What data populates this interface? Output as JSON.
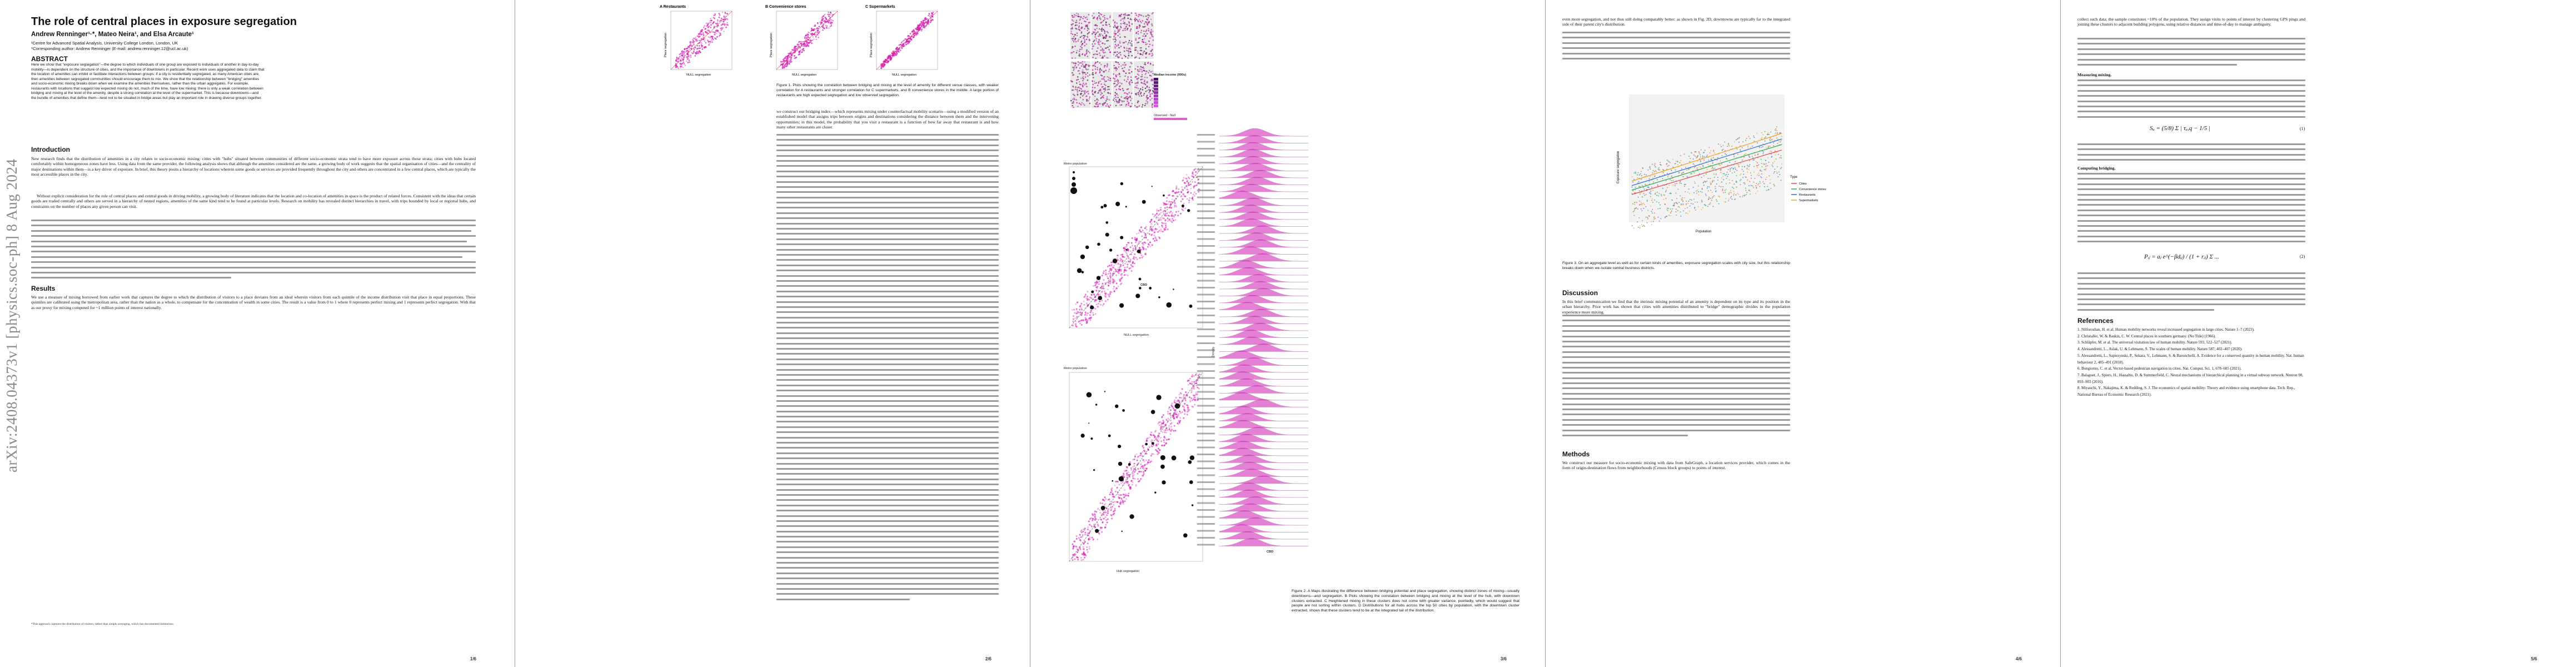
{
  "arxiv_stamp": "arXiv:2408.04373v1  [physics.soc-ph]  8 Aug 2024",
  "paper": {
    "title": "The role of central places in exposure segregation",
    "authors": "Andrew Renninger¹·*, Mateo Neira¹, and Elsa Arcaute¹",
    "affiliation_1": "¹Centre for Advanced Spatial Analysis, University College London, London, UK",
    "affiliation_2": "*Corresponding author: Andrew Renninger (E-mail: andrew.renninger.12@ucl.ac.uk)",
    "abstract_heading": "ABSTRACT",
    "abstract": "Here we show that \"exposure segregation\"—the degree to which individuals of one group are exposed to individuals of another in day-to-day mobility—is dependent on the structure of cities, and the importance of downtowns in particular. Recent work uses aggregated data to claim that the location of amenities can inhibit or facilitate interactions between groups: if a city is residentially segregated, as many American cities are, then amenities between segregated communities should encourage them to mix. We show that the relationship between \"bridging\" amenities and socio-economic mixing breaks down when we examine the amenities themselves, rather than the urban aggregates. For example, restaurants with locations that suggest low expected mixing do not, much of the time, have low mixing: there is only a weak correlation between bridging and mixing at the level of the amenity, despite a strong correlation at the level of the supermarket. This is because downtowns—and the bundle of amenities that define them—tend not to be situated in bridge areas but play an important role in drawing diverse groups together."
  },
  "page1": {
    "intro_heading": "Introduction",
    "intro_p1": "New research finds that the distribution of amenities in a city relates to socio-economic mixing: cities with \"hubs\" situated between communities of different socio-economic strata tend to have more exposure across those strata; cities with hubs located comfortably within homogeneous zones have less. Using data from the same provider, the following analysis shows that although the amenities considered are the same, a growing body of work suggests that the spatial organisation of cities—and the centrality of major destinations within them—is a key driver of exposure. In brief, this theory posits a hierarchy of locations wherein some goods or services are provided frequently throughout the city and others are concentrated in a few central places, which are typically the most accessible places in the city.",
    "intro_p2": "Without explicit consideration for the role of central places and central goods in driving mobility, a growing body of literature indicates that the location and co-location of amenities in space is the product of related forces. Consistent with the ideas that certain goods are traded centrally and others are served in a hierarchy of nested regions, amenities of the same kind tend to be found at particular levels. Research on mobility has revealed distinct hierarchies in travel, with trips bounded by local or regional hubs, and constraints on the number of places any given person can visit.",
    "results_heading": "Results",
    "results_p1": "We use a measure of mixing borrowed from earlier work that captures the degree to which the distribution of visitors to a place deviates from an ideal wherein visitors from each quintile of the income distribution visit that place in equal proportions. These quintiles are calibrated using the metropolitan area, rather than the nation as a whole, to compensate for the concentration of wealth in some cities. The result is a value from 0 to 1 where 0 represents perfect mixing and 1 represents perfect segregation. With that as our proxy for mixing computed for ~1 million points of interest nationally.",
    "footnote": "*This approach captures the distribution of visitors, rather than simple averaging, which has documented limitations.",
    "page_number": "1/6"
  },
  "page2": {
    "fig1_panels": [
      "A Restaurants",
      "B Convenience stores",
      "C Supermarkets"
    ],
    "fig1_ylabel": "Place segregation",
    "fig1_xlabel": "NULL segregation",
    "fig1_caption": "Figure 1. Plots showing the correlation between bridging and mixing at the level of amenity for different venue classes, with weaker correlation for A restaurants and stronger correlation for C supermarkets, and B convenience stores in the middle. A large portion of restaurants are high expected segregation and low observed segregation.",
    "body_text": "we construct our bridging index—which represents mixing under counterfactual mobility scenario—using a modified version of an established model that assigns trips between origins and destinations considering the distance between them and the intervening opportunities; in this model, the probability that you visit a restaurant is a function of how far away that restaurant is and how many other restaurants are closer.",
    "page_number": "2/6"
  },
  "page3": {
    "legend_title": "Median income (000s)",
    "observed_label": "Observed - Null",
    "metro_population_label": "Metro population",
    "cbd_label": "CBD",
    "hub_segregation_label": "Hub segregation",
    "null_segregation_label": "NULL segregation",
    "density_label": "Density",
    "fig2_caption": "Figure 2. A Maps illustrating the difference between bridging potential and place segregation, showing distinct zones of mixing—usually downtowns—and segregation. B Plots showing the correlation between bridging and mixing at the level of the hub, with downtown clusters extracted. C Heightened mixing in these clusters does not come with greater variance, pointedly, which would suggest that people are not sorting within clusters. D Distributions for all hubs across the top 50 cities by population, with the downtown cluster extracted, shows that these clusters tend to be at the integrated tail of the distribution.",
    "page_number": "3/6"
  },
  "page4": {
    "col1_text": "even more segregation, and not thus still doing comparably better: as shown in Fig. 2D, downtowns are typically far to the integrated side of their parent city's distribution.",
    "fig3_ylabel": "Exposure segregation",
    "fig3_xlabel": "Population",
    "fig3_legend_title": "Type",
    "fig3_legend_items": [
      "Cities",
      "Convenience stores",
      "Restaurants",
      "Supermarkets"
    ],
    "fig3_caption": "Figure 3. On an aggregate level as well as for certain kinds of amenities, exposure segregation scales with city size, but this relationship breaks down when we isolate central business districts.",
    "discussion_heading": "Discussion",
    "discussion_text": "In this brief communication we find that the intrinsic mixing potential of an amenity is dependent on its type and its position in the urban hierarchy. Prior work has shown that cities with amenities distributed to \"bridge\" demographic divides in the population experience more mixing.",
    "methods_heading": "Methods",
    "methods_text": "We construct our measure for socio-economic mixing with data from SafeGraph, a location services provider, which comes in the form of origin-destination flows from neighborhoods (Census block groups) to points of interest.",
    "page_number": "4/6"
  },
  "page5": {
    "col1_text": "collect such data; the sample constitutes ~10% of the population. They assign visits to points of interest by clustering GPS pings and joining these clusters to adjacent building polygons, using relative distances and time-of-day to manage ambiguity.",
    "measuring_heading": "Measuring mixing.",
    "equation_1": "Sₐ = (5/8) Σ | τₐ,q − 1/5 |",
    "equation_1_number": "(1)",
    "computing_heading": "Computing bridging.",
    "equation_2": "Pᵢⱼ = aⱼ e^(−βdᵢⱼ) / (1 + rᵢⱼ) Σ ...",
    "equation_2_number": "(2)",
    "references_heading": "References",
    "references": [
      "1. Nilforoshan, H. et al. Human mobility networks reveal increased segregation in large cities. Nature 1–7 (2023).",
      "2. Christaller, W. & Baskin, C. W. Central places in southern germany. (No Title) (1966).",
      "3. Schläpfer, M. et al. The universal visitation law of human mobility. Nature 593, 522–527 (2021).",
      "4. Alessandretti, L., Aslak, U. & Lehmann, S. The scales of human mobility. Nature 587, 402–407 (2020).",
      "5. Alessandretti, L., Sapiezynski, P., Sekara, V., Lehmann, S. & Baronchelli, A. Evidence for a conserved quantity in human mobility. Nat. human behaviour 2, 485–491 (2018).",
      "6. Bongiorno, C. et al. Vector-based pedestrian navigation in cities. Nat. Comput. Sci. 1, 678–685 (2021).",
      "7. Balaguer, J., Spiers, H., Hassabis, D. & Summerfield, C. Neural mechanisms of hierarchical planning in a virtual subway network. Neuron 90, 893–903 (2016).",
      "8. Miyauchi, Y., Nakajima, K. & Redding, S. J. The economics of spatial mobility: Theory and evidence using smartphone data. Tech. Rep., National Bureau of Economic Research (2021)."
    ],
    "page_number": "5/6"
  },
  "colors": {
    "magenta": "#d11bb3",
    "diag_red": "#d2282f",
    "page_bg": "#ffffff",
    "viewer_bg": "#6b6b6b"
  }
}
